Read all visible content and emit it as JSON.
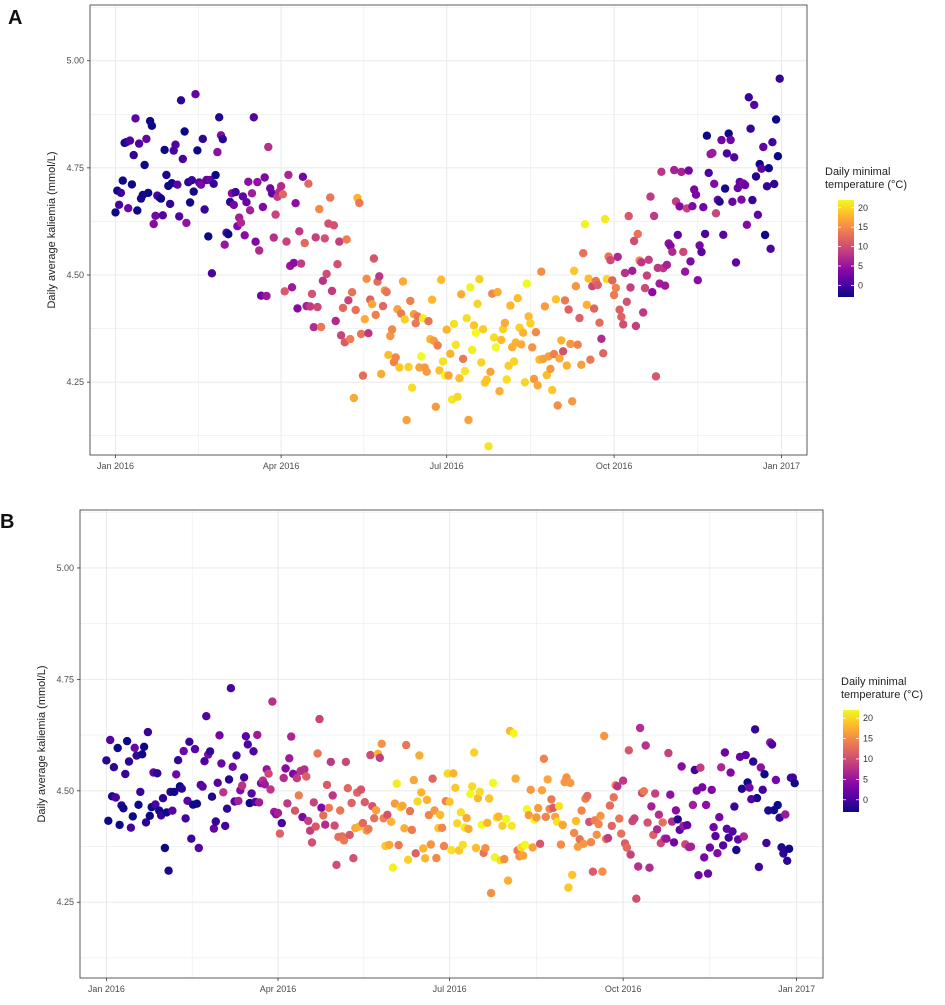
{
  "panels": [
    {
      "letter": "A"
    },
    {
      "letter": "B"
    }
  ],
  "colors": {
    "panel_background": "#ffffff",
    "grid": "#ebebeb",
    "panel_border": "#333333",
    "palette": "plasma",
    "scale_stops": [
      "#0d0887",
      "#5302a3",
      "#8b0aa5",
      "#b83289",
      "#db5c68",
      "#f48849",
      "#febd2a",
      "#f0f921"
    ]
  },
  "chart_data": [
    {
      "type": "scatter",
      "panel": "A",
      "ylabel": "Daily average kaliemia (mmol/L)",
      "xlabel": "",
      "x_ticks": [
        "Jan 2016",
        "Apr 2016",
        "Jul 2016",
        "Oct 2016",
        "Jan 2017"
      ],
      "x_tick_dates": [
        "2016-01-01",
        "2016-04-01",
        "2016-07-01",
        "2016-10-01",
        "2017-01-01"
      ],
      "xlim": [
        "2015-12-18",
        "2017-01-15"
      ],
      "y_ticks": [
        "4.25",
        "4.50",
        "4.75",
        "5.00"
      ],
      "ylim": [
        4.08,
        5.13
      ],
      "grid": true,
      "legend": {
        "title_line1": "Daily minimal",
        "title_line2": "temperature (°C)",
        "ticks": [
          "20",
          "15",
          "10",
          "5",
          "0"
        ],
        "range": [
          -3,
          22
        ],
        "placement": "right"
      },
      "model": {
        "type": "seasonal",
        "y_mean": 4.53,
        "y_amplitude": 0.22,
        "peak_day": 15,
        "noise_sd": 0.085,
        "temp_mean": 8.5,
        "temp_amplitude": 10.5,
        "temp_noise_sd": 2.6,
        "seed": 11
      }
    },
    {
      "type": "scatter",
      "panel": "B",
      "ylabel": "Daily average kaliemia (mmol/L)",
      "xlabel": "",
      "x_ticks": [
        "Jan 2016",
        "Apr 2016",
        "Jul 2016",
        "Oct 2016",
        "Jan 2017"
      ],
      "x_tick_dates": [
        "2016-01-01",
        "2016-04-01",
        "2016-07-01",
        "2016-10-01",
        "2017-01-01"
      ],
      "xlim": [
        "2015-12-18",
        "2017-01-15"
      ],
      "y_ticks": [
        "4.25",
        "4.50",
        "4.75",
        "5.00"
      ],
      "ylim": [
        4.08,
        5.13
      ],
      "grid": true,
      "legend": {
        "title_line1": "Daily minimal",
        "title_line2": "temperature (°C)",
        "ticks": [
          "20",
          "15",
          "10",
          "5",
          "0"
        ],
        "range": [
          -3,
          22
        ],
        "placement": "right"
      },
      "model": {
        "type": "seasonal",
        "y_mean": 4.47,
        "y_amplitude": 0.04,
        "peak_day": 60,
        "noise_sd": 0.075,
        "temp_mean": 8.5,
        "temp_amplitude": 10.5,
        "temp_noise_sd": 2.6,
        "seed": 29
      }
    }
  ]
}
